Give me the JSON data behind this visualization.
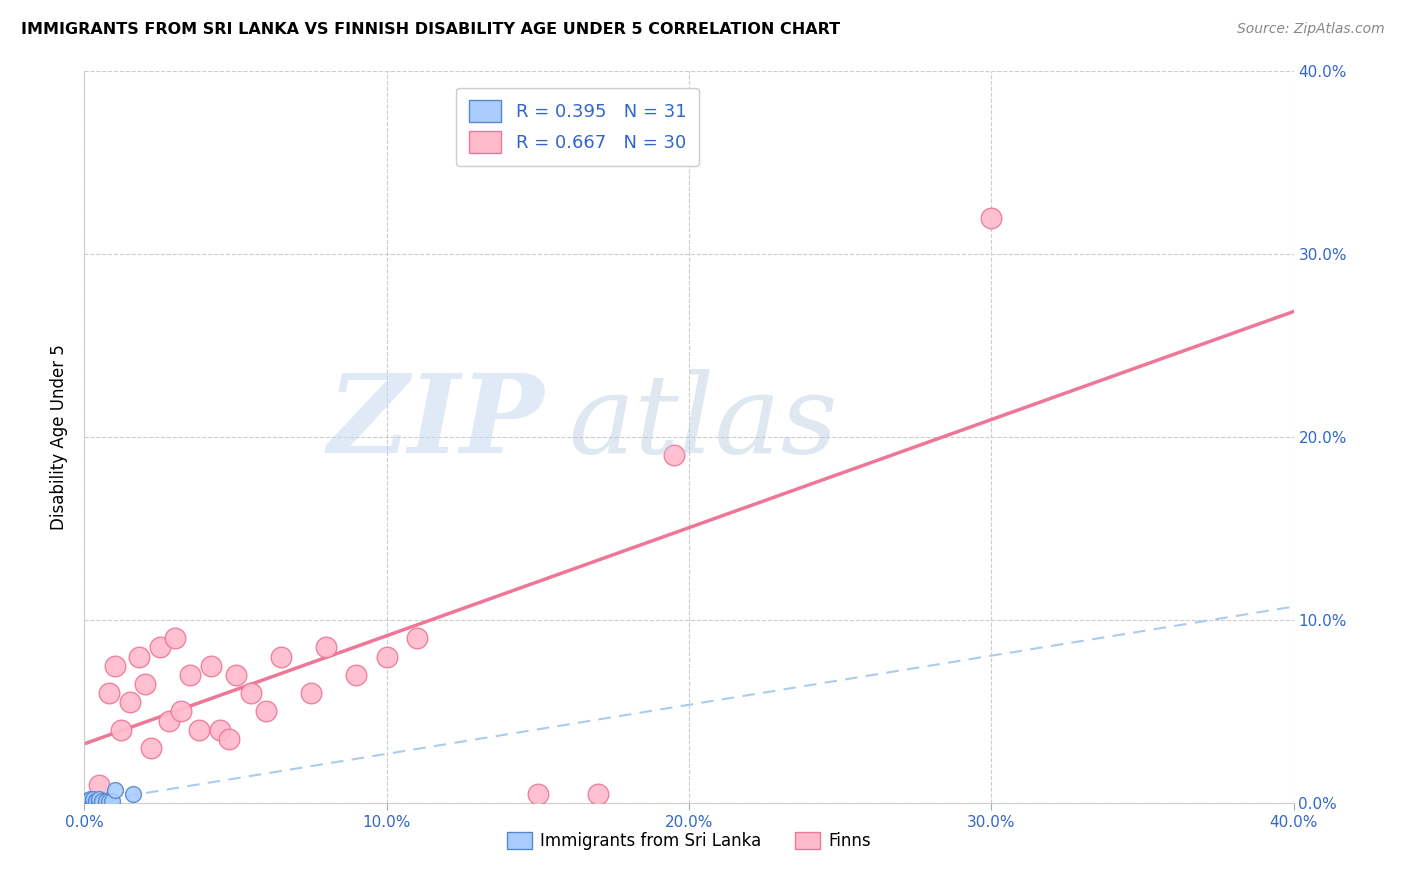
{
  "title": "IMMIGRANTS FROM SRI LANKA VS FINNISH DISABILITY AGE UNDER 5 CORRELATION CHART",
  "source": "Source: ZipAtlas.com",
  "ylabel": "Disability Age Under 5",
  "xlim": [
    0.0,
    0.4
  ],
  "ylim": [
    0.0,
    0.4
  ],
  "xtick_vals": [
    0.0,
    0.1,
    0.2,
    0.3,
    0.4
  ],
  "xtick_labels": [
    "0.0%",
    "10.0%",
    "20.0%",
    "30.0%",
    "40.0%"
  ],
  "ytick_vals": [
    0.0,
    0.1,
    0.2,
    0.3,
    0.4
  ],
  "ytick_labels_right": [
    "0.0%",
    "10.0%",
    "20.0%",
    "30.0%",
    "40.0%"
  ],
  "sri_lanka_color": "#aaccff",
  "sri_lanka_edge": "#5588cc",
  "finns_color": "#ffbbcc",
  "finns_edge": "#ee7799",
  "sri_lanka_R": 0.395,
  "sri_lanka_N": 31,
  "finns_R": 0.667,
  "finns_N": 30,
  "legend_label_1": "Immigrants from Sri Lanka",
  "legend_label_2": "Finns",
  "sri_lanka_x": [
    0.0,
    0.001,
    0.001,
    0.001,
    0.001,
    0.002,
    0.002,
    0.002,
    0.002,
    0.002,
    0.003,
    0.003,
    0.003,
    0.003,
    0.003,
    0.003,
    0.004,
    0.004,
    0.004,
    0.004,
    0.005,
    0.005,
    0.005,
    0.006,
    0.006,
    0.007,
    0.007,
    0.008,
    0.009,
    0.01,
    0.016
  ],
  "sri_lanka_y": [
    0.001,
    0.0,
    0.0,
    0.001,
    0.001,
    0.0,
    0.0,
    0.001,
    0.001,
    0.002,
    0.0,
    0.0,
    0.001,
    0.001,
    0.001,
    0.002,
    0.0,
    0.0,
    0.001,
    0.001,
    0.0,
    0.001,
    0.002,
    0.0,
    0.001,
    0.0,
    0.001,
    0.001,
    0.001,
    0.007,
    0.005
  ],
  "finns_x": [
    0.005,
    0.008,
    0.01,
    0.012,
    0.015,
    0.018,
    0.02,
    0.022,
    0.025,
    0.028,
    0.03,
    0.032,
    0.035,
    0.038,
    0.042,
    0.045,
    0.048,
    0.05,
    0.055,
    0.06,
    0.065,
    0.075,
    0.08,
    0.09,
    0.1,
    0.11,
    0.15,
    0.17,
    0.195,
    0.3
  ],
  "finns_y": [
    0.01,
    0.06,
    0.075,
    0.04,
    0.055,
    0.08,
    0.065,
    0.03,
    0.085,
    0.045,
    0.09,
    0.05,
    0.07,
    0.04,
    0.075,
    0.04,
    0.035,
    0.07,
    0.06,
    0.05,
    0.08,
    0.06,
    0.085,
    0.07,
    0.08,
    0.09,
    0.005,
    0.005,
    0.19,
    0.32
  ]
}
